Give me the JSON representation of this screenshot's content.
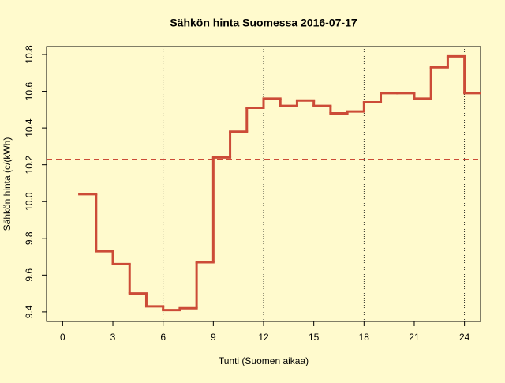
{
  "chart_data": {
    "type": "step",
    "title": "Sähkön hinta Suomessa 2016-07-17",
    "x_label": "Tunti (Suomen aikaa)",
    "y_label": "Sähkön hinta (c/(kWh)",
    "x": [
      1,
      2,
      3,
      4,
      5,
      6,
      7,
      8,
      9,
      10,
      11,
      12,
      13,
      14,
      15,
      16,
      17,
      18,
      19,
      20,
      21,
      22,
      23,
      24
    ],
    "series": [
      {
        "name": "hinta",
        "color": "#cc4b37",
        "values": [
          10.04,
          9.73,
          9.66,
          9.5,
          9.43,
          9.41,
          9.42,
          9.67,
          10.24,
          10.38,
          10.51,
          10.56,
          10.52,
          10.55,
          10.52,
          10.48,
          10.49,
          10.54,
          10.59,
          10.59,
          10.56,
          10.73,
          10.79,
          10.59
        ]
      }
    ],
    "mean_line": 10.23,
    "xlim": [
      -0.96,
      24.96
    ],
    "xticks": [
      0,
      3,
      6,
      9,
      12,
      15,
      18,
      21,
      24
    ],
    "ylim": [
      9.348,
      10.843
    ],
    "yticks": [
      9.4,
      9.6,
      9.8,
      {
        "value": 10,
        "label": "10.0"
      },
      10.2,
      10.4,
      10.6,
      10.8
    ],
    "vlines": [
      6,
      12,
      18,
      24
    ]
  }
}
